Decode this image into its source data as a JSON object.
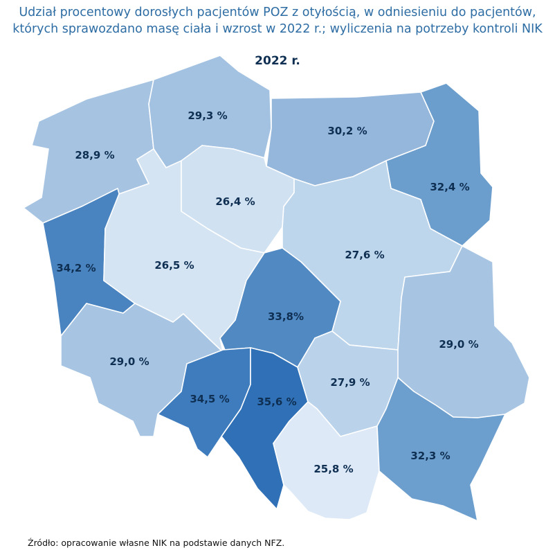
{
  "title": {
    "line1": "Udział procentowy dorosłych pacjentów POZ z otyłością, w odniesieniu do pacjentów,",
    "line2": "których sprawozdano masę ciała i wzrost w 2022 r.; wyliczenia na potrzeby kontroli NIK"
  },
  "year_label": "2022 r.",
  "source": "Źródło: opracowanie własne NIK na podstawie danych NFZ.",
  "regions": [
    {
      "id": "zachodniopomorskie",
      "value": "28,9 %",
      "color": "#a6c4e2"
    },
    {
      "id": "pomorskie",
      "value": "29,3 %",
      "color": "#a3c2e1"
    },
    {
      "id": "warminsko-mazurskie",
      "value": "30,2 %",
      "color": "#94b7db"
    },
    {
      "id": "podlaskie",
      "value": "32,4 %",
      "color": "#6b9ecd"
    },
    {
      "id": "lubuskie",
      "value": "34,2 %",
      "color": "#4a84c0"
    },
    {
      "id": "wielkopolskie",
      "value": "26,5 %",
      "color": "#d4e4f3"
    },
    {
      "id": "kujawsko-pomorskie",
      "value": "26,4 %",
      "color": "#d0e1f2"
    },
    {
      "id": "mazowieckie",
      "value": "27,6 %",
      "color": "#bed6ec"
    },
    {
      "id": "lodzkie",
      "value": "33,8%",
      "color": "#5189c3"
    },
    {
      "id": "dolnoslaskie",
      "value": "29,0 %",
      "color": "#a7c5e2"
    },
    {
      "id": "opolskie",
      "value": "34,5 %",
      "color": "#3f7cbd"
    },
    {
      "id": "slaskie",
      "value": "35,6 %",
      "color": "#2f70b6"
    },
    {
      "id": "swietokrzyskie",
      "value": "27,9 %",
      "color": "#bad3eb"
    },
    {
      "id": "lubelskie",
      "value": "29,0 %",
      "color": "#a7c5e2"
    },
    {
      "id": "malopolskie",
      "value": "25,8 %",
      "color": "#dde9f6"
    },
    {
      "id": "podkarpackie",
      "value": "32,3 %",
      "color": "#6d9fce"
    }
  ]
}
